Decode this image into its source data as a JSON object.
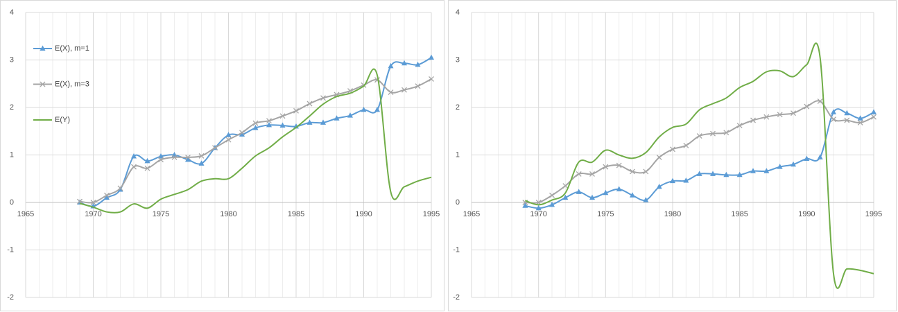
{
  "chart_data": [
    {
      "type": "line",
      "legend": "left",
      "grid": true,
      "x_minor_grid": true,
      "x": [
        1969,
        1970,
        1971,
        1972,
        1973,
        1974,
        1975,
        1976,
        1977,
        1978,
        1979,
        1980,
        1981,
        1982,
        1983,
        1984,
        1985,
        1986,
        1987,
        1988,
        1989,
        1990,
        1991,
        1992,
        1993,
        1994,
        1995
      ],
      "xlim": [
        1965,
        1995
      ],
      "xticks": [
        1965,
        1970,
        1975,
        1980,
        1985,
        1990,
        1995
      ],
      "ylim": [
        -2,
        4
      ],
      "yticks": [
        -2,
        -1,
        0,
        1,
        2,
        3,
        4
      ],
      "series": [
        {
          "name": "E(X), m=1",
          "color": "#5b9bd5",
          "marker": "triangle",
          "values": [
            0,
            -0.08,
            0.1,
            0.27,
            0.97,
            0.87,
            0.97,
            1.0,
            0.9,
            0.82,
            1.15,
            1.42,
            1.43,
            1.57,
            1.63,
            1.62,
            1.6,
            1.68,
            1.68,
            1.77,
            1.83,
            1.95,
            1.95,
            2.87,
            2.93,
            2.9,
            3.05
          ]
        },
        {
          "name": "E(X), m=3",
          "color": "#a5a5a5",
          "marker": "x",
          "values": [
            0.02,
            0.0,
            0.15,
            0.3,
            0.75,
            0.72,
            0.9,
            0.95,
            0.95,
            0.98,
            1.15,
            1.32,
            1.47,
            1.67,
            1.72,
            1.82,
            1.93,
            2.08,
            2.2,
            2.27,
            2.35,
            2.47,
            2.58,
            2.32,
            2.37,
            2.45,
            2.6
          ]
        },
        {
          "name": "E(Y)",
          "color": "#70ad47",
          "values": [
            -0.02,
            -0.1,
            -0.2,
            -0.2,
            -0.03,
            -0.12,
            0.07,
            0.17,
            0.27,
            0.45,
            0.5,
            0.5,
            0.72,
            0.98,
            1.15,
            1.38,
            1.58,
            1.82,
            2.07,
            2.23,
            2.3,
            2.45,
            2.68,
            0.22,
            0.33,
            0.45,
            0.53
          ]
        }
      ]
    },
    {
      "type": "line",
      "grid": true,
      "x_minor_grid": true,
      "x": [
        1969,
        1970,
        1971,
        1972,
        1973,
        1974,
        1975,
        1976,
        1977,
        1978,
        1979,
        1980,
        1981,
        1982,
        1983,
        1984,
        1985,
        1986,
        1987,
        1988,
        1989,
        1990,
        1991,
        1992,
        1993,
        1994,
        1995
      ],
      "xlim": [
        1965,
        1995
      ],
      "xticks": [
        1965,
        1970,
        1975,
        1980,
        1985,
        1990,
        1995
      ],
      "ylim": [
        -2,
        4
      ],
      "yticks": [
        -2,
        -1,
        0,
        1,
        2,
        3,
        4
      ],
      "series": [
        {
          "color": "#5b9bd5",
          "marker": "triangle",
          "values": [
            -0.07,
            -0.12,
            -0.05,
            0.1,
            0.22,
            0.1,
            0.2,
            0.28,
            0.15,
            0.05,
            0.33,
            0.45,
            0.46,
            0.6,
            0.6,
            0.58,
            0.58,
            0.66,
            0.66,
            0.75,
            0.8,
            0.92,
            0.95,
            1.9,
            1.88,
            1.77,
            1.9
          ]
        },
        {
          "color": "#a5a5a5",
          "marker": "x",
          "values": [
            0.0,
            0.0,
            0.15,
            0.35,
            0.6,
            0.6,
            0.75,
            0.78,
            0.65,
            0.65,
            0.95,
            1.12,
            1.2,
            1.4,
            1.45,
            1.47,
            1.62,
            1.73,
            1.8,
            1.85,
            1.88,
            2.02,
            2.13,
            1.75,
            1.73,
            1.68,
            1.8
          ]
        },
        {
          "color": "#70ad47",
          "values": [
            0.04,
            -0.05,
            0.05,
            0.2,
            0.85,
            0.85,
            1.1,
            1.0,
            0.93,
            1.05,
            1.38,
            1.58,
            1.65,
            1.95,
            2.08,
            2.2,
            2.42,
            2.55,
            2.75,
            2.77,
            2.65,
            2.9,
            3.05,
            -1.5,
            -1.4,
            -1.43,
            -1.5
          ]
        }
      ]
    }
  ]
}
